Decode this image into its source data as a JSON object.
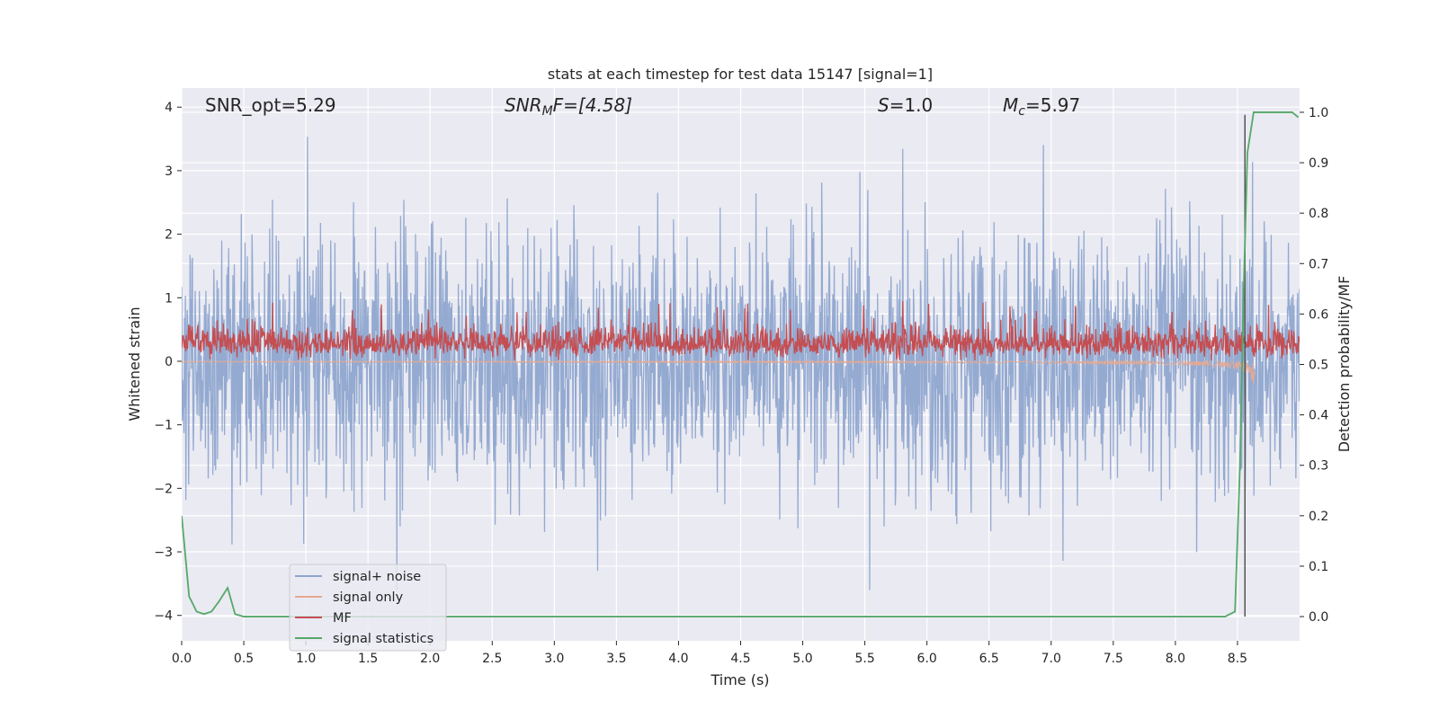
{
  "chart_data": {
    "type": "line",
    "title": "stats at each timestep for test data 15147 [signal=1]",
    "xlabel": "Time (s)",
    "ylabel_left": "Whitened strain",
    "ylabel_right": "Detection probability/MF",
    "xlim": [
      0.0,
      9.0
    ],
    "ylim_left": [
      -4.4,
      4.3
    ],
    "ylim_right": [
      -0.048,
      1.048
    ],
    "x_ticks": [
      "0.0",
      "0.5",
      "1.0",
      "1.5",
      "2.0",
      "2.5",
      "3.0",
      "3.5",
      "4.0",
      "4.5",
      "5.0",
      "5.5",
      "6.0",
      "6.5",
      "7.0",
      "7.5",
      "8.0",
      "8.5"
    ],
    "x_tick_values": [
      0,
      0.5,
      1,
      1.5,
      2,
      2.5,
      3,
      3.5,
      4,
      4.5,
      5,
      5.5,
      6,
      6.5,
      7,
      7.5,
      8,
      8.5
    ],
    "y_left_ticks": [
      "4",
      "3",
      "2",
      "1",
      "0",
      "−1",
      "−2",
      "−3",
      "−4"
    ],
    "y_left_tick_values": [
      4,
      3,
      2,
      1,
      0,
      -1,
      -2,
      -3,
      -4
    ],
    "y_right_ticks": [
      "1.0",
      "0.9",
      "0.8",
      "0.7",
      "0.6",
      "0.5",
      "0.4",
      "0.3",
      "0.2",
      "0.1",
      "0.0"
    ],
    "y_right_tick_values": [
      1.0,
      0.9,
      0.8,
      0.7,
      0.6,
      0.5,
      0.4,
      0.3,
      0.2,
      0.1,
      0.0
    ],
    "annotations": {
      "snr_opt": "SNR_opt=5.29",
      "snr_mf_sym": "SNR",
      "snr_mf_sub": "M",
      "snr_mf_rest": "F=[4.58]",
      "s_sym": "S",
      "s_rest": "=1.0",
      "mc_sym": "M",
      "mc_sub": "c",
      "mc_rest": "=5.97"
    },
    "merger_time": 8.56,
    "series": [
      {
        "name": "signal+ noise",
        "color": "#8fa6cf",
        "kind": "noise",
        "sigma": 1.0
      },
      {
        "name": "signal only",
        "color": "#e8a990",
        "kind": "chirp",
        "end_time": 8.65,
        "peak_amplitude": -0.55
      },
      {
        "name": "MF",
        "color": "#c44e52",
        "kind": "mf",
        "baseline": 0.27,
        "max": 1.0
      },
      {
        "name": "signal statistics",
        "color": "#55a868",
        "kind": "probability",
        "x": [
          0.0,
          0.03,
          0.06,
          0.12,
          0.18,
          0.24,
          0.3,
          0.37,
          0.43,
          0.5,
          1.0,
          2.0,
          3.0,
          4.0,
          5.0,
          6.0,
          7.0,
          8.0,
          8.4,
          8.48,
          8.52,
          8.55,
          8.58,
          8.63,
          8.7,
          8.8,
          8.94,
          8.99
        ],
        "values": [
          0.2,
          0.12,
          0.04,
          0.01,
          0.005,
          0.01,
          0.03,
          0.057,
          0.005,
          0.0,
          0.0,
          0.0,
          0.0,
          0.0,
          0.0,
          0.0,
          0.0,
          0.0,
          0.0,
          0.01,
          0.3,
          0.65,
          0.92,
          1.0,
          1.0,
          1.0,
          1.0,
          0.99
        ]
      }
    ]
  }
}
